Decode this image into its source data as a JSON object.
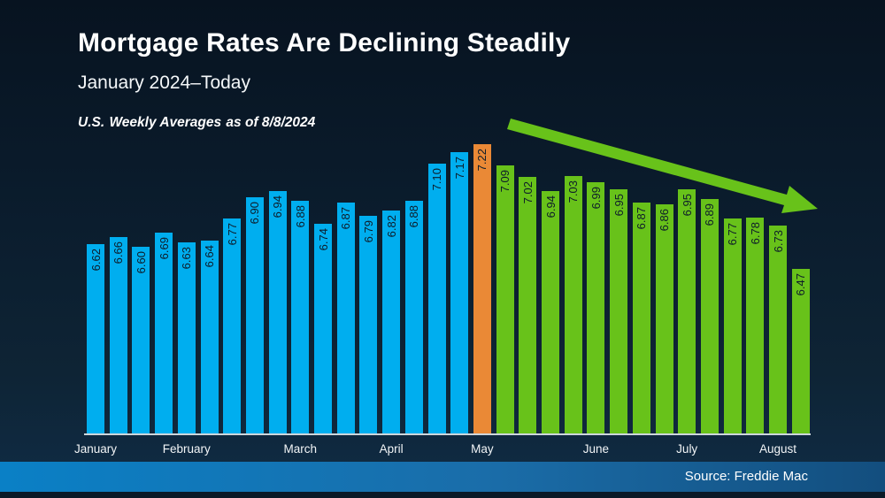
{
  "header": {
    "title": "Mortgage Rates Are Declining Steadily",
    "subtitle": "January 2024–Today",
    "note_prefix": "U.S. ",
    "note_highlight": "Weekly Averages",
    "note_suffix": " as of 8/8/2024"
  },
  "footer": {
    "source": "Source: Freddie Mac"
  },
  "colors": {
    "blue": "#00AEEF",
    "orange": "#EA8936",
    "green": "#68C21A",
    "note_highlight": "#E3A33C",
    "background": "#0B1D2E",
    "bar_label": "#0D1C2A",
    "footer_left": "#0A80C6",
    "footer_right": "#134E7E"
  },
  "chart_data": {
    "type": "bar",
    "title": "Mortgage Rates Are Declining Steadily",
    "subtitle": "January 2024–Today",
    "note": "U.S. Weekly Averages as of 8/8/2024",
    "xlabel": "",
    "ylabel": "",
    "unit": "%",
    "ylim": [
      5.48,
      7.35
    ],
    "grid": false,
    "legend": false,
    "annotation": "green declining trend arrow over May–August bars",
    "values": [
      6.62,
      6.66,
      6.6,
      6.69,
      6.63,
      6.64,
      6.77,
      6.9,
      6.94,
      6.88,
      6.74,
      6.87,
      6.79,
      6.82,
      6.88,
      7.1,
      7.17,
      7.22,
      7.09,
      7.02,
      6.94,
      7.03,
      6.99,
      6.95,
      6.87,
      6.86,
      6.95,
      6.89,
      6.77,
      6.78,
      6.73,
      6.47
    ],
    "bar_colors": [
      "blue",
      "blue",
      "blue",
      "blue",
      "blue",
      "blue",
      "blue",
      "blue",
      "blue",
      "blue",
      "blue",
      "blue",
      "blue",
      "blue",
      "blue",
      "blue",
      "blue",
      "orange",
      "green",
      "green",
      "green",
      "green",
      "green",
      "green",
      "green",
      "green",
      "green",
      "green",
      "green",
      "green",
      "green",
      "green"
    ],
    "months": [
      {
        "label": "January",
        "weeks": 4
      },
      {
        "label": "February",
        "weeks": 5
      },
      {
        "label": "March",
        "weeks": 4
      },
      {
        "label": "April",
        "weeks": 4
      },
      {
        "label": "May",
        "weeks": 5
      },
      {
        "label": "June",
        "weeks": 4
      },
      {
        "label": "July",
        "weeks": 4
      },
      {
        "label": "August",
        "weeks": 2
      }
    ]
  }
}
